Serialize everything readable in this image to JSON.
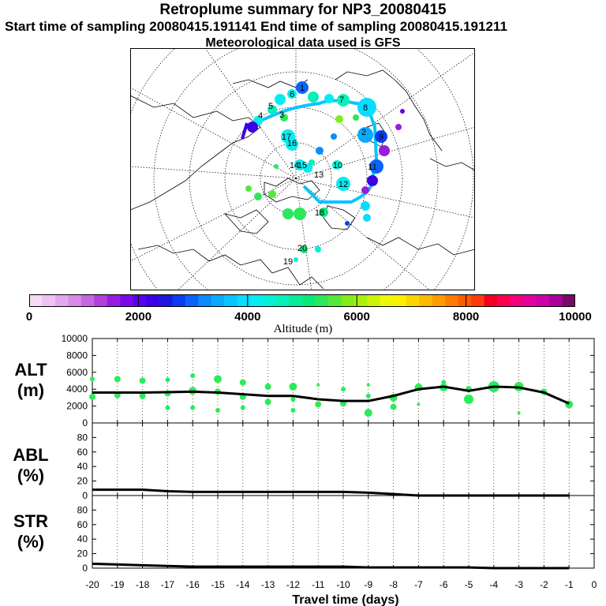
{
  "header": {
    "title": "Retroplume summary for NP3_20080415",
    "sampling": "Start time of sampling 20080415.191141     End time of sampling 20080415.191211",
    "meteo": "Meteorological data used is GFS"
  },
  "colorbar": {
    "tick_labels": [
      "0",
      "2000",
      "4000",
      "6000",
      "8000",
      "10000"
    ],
    "axis_label": "Altitude (m)",
    "colors": [
      "#f5d9f5",
      "#eec2f2",
      "#e2a8ee",
      "#d88ae8",
      "#c865e2",
      "#b43fdc",
      "#9a1be0",
      "#7a08e8",
      "#5a00f0",
      "#3c00e8",
      "#2018e0",
      "#0a3cf2",
      "#0a64fa",
      "#0a8cff",
      "#0aaaff",
      "#0ac4ff",
      "#0adcff",
      "#06ecf0",
      "#06f0d8",
      "#06f0b8",
      "#06ec98",
      "#0ae878",
      "#2ae85a",
      "#54e83a",
      "#80ec1c",
      "#a8f00a",
      "#ccf40a",
      "#ecf80a",
      "#fcf000",
      "#fcd400",
      "#fcb800",
      "#fc9c00",
      "#fc7c00",
      "#fc5c00",
      "#fc3c10",
      "#f4001c",
      "#fc0050",
      "#f4007c",
      "#e4009c",
      "#cc00ac",
      "#a8009c",
      "#7a0868"
    ]
  },
  "panels": {
    "alt": {
      "label_line1": "ALT",
      "label_line2": "(m)",
      "yticks": [
        "0",
        "2000",
        "4000",
        "6000",
        "8000",
        "10000"
      ]
    },
    "abl": {
      "label_line1": "ABL",
      "label_line2": "(%)",
      "yticks": [
        "0",
        "20",
        "40",
        "60",
        "80"
      ]
    },
    "str": {
      "label_line1": "STR",
      "label_line2": "(%)",
      "yticks": [
        "0",
        "20",
        "40",
        "60",
        "80"
      ]
    },
    "xticks": [
      "-20",
      "-19",
      "-18",
      "-17",
      "-16",
      "-15",
      "-14",
      "-13",
      "-12",
      "-11",
      "-10",
      "-9",
      "-8",
      "-7",
      "-6",
      "-5",
      "-4",
      "-3",
      "-2",
      "-1",
      "0"
    ],
    "xlabel": "Travel time (days)"
  },
  "map": {
    "day_labels": [
      "1",
      "2",
      "3",
      "4",
      "5",
      "6",
      "7",
      "8",
      "9",
      "10",
      "11",
      "12",
      "13",
      "14",
      "15",
      "16",
      "17",
      "18",
      "19",
      "20"
    ]
  },
  "chart_data": {
    "type": "line",
    "title": "Retroplume summary for NP3_20080415",
    "xlabel": "Travel time (days)",
    "x": [
      -20,
      -19,
      -18,
      -17,
      -16,
      -15,
      -14,
      -13,
      -12,
      -11,
      -10,
      -9,
      -8,
      -7,
      -6,
      -5,
      -4,
      -3,
      -2,
      -1
    ],
    "xlim": [
      -20,
      0
    ],
    "series": [
      {
        "name": "ALT (m)",
        "ylim": [
          0,
          10000
        ],
        "values": [
          3600,
          3600,
          3600,
          3650,
          3700,
          3600,
          3400,
          3200,
          3200,
          2800,
          2600,
          2600,
          3200,
          4000,
          4300,
          3800,
          4300,
          4200,
          3600,
          2300
        ]
      },
      {
        "name": "ABL (%)",
        "ylim": [
          0,
          100
        ],
        "values": [
          8,
          8,
          8,
          6,
          5,
          5,
          5,
          5,
          5,
          5,
          5,
          4,
          2,
          0,
          0,
          0,
          0,
          0,
          0,
          0
        ]
      },
      {
        "name": "STR (%)",
        "ylim": [
          0,
          100
        ],
        "values": [
          6,
          5,
          4,
          3,
          2,
          2,
          2,
          2,
          2,
          2,
          2,
          1,
          1,
          1,
          1,
          1,
          0,
          0,
          0,
          0
        ]
      }
    ],
    "cluster_points": [
      {
        "x": -20,
        "alt": 5200,
        "s": 2
      },
      {
        "x": -20,
        "alt": 3100,
        "s": 3
      },
      {
        "x": -19,
        "alt": 5200,
        "s": 3
      },
      {
        "x": -19,
        "alt": 3300,
        "s": 3
      },
      {
        "x": -18,
        "alt": 5000,
        "s": 3
      },
      {
        "x": -18,
        "alt": 3200,
        "s": 3
      },
      {
        "x": -17,
        "alt": 5100,
        "s": 2
      },
      {
        "x": -17,
        "alt": 3500,
        "s": 3
      },
      {
        "x": -17,
        "alt": 1800,
        "s": 2
      },
      {
        "x": -16,
        "alt": 5600,
        "s": 2
      },
      {
        "x": -16,
        "alt": 3800,
        "s": 4
      },
      {
        "x": -16,
        "alt": 1800,
        "s": 2
      },
      {
        "x": -15,
        "alt": 5200,
        "s": 4
      },
      {
        "x": -15,
        "alt": 3700,
        "s": 3
      },
      {
        "x": -15,
        "alt": 1500,
        "s": 2
      },
      {
        "x": -14,
        "alt": 4800,
        "s": 3
      },
      {
        "x": -14,
        "alt": 3100,
        "s": 3
      },
      {
        "x": -14,
        "alt": 1800,
        "s": 2
      },
      {
        "x": -13,
        "alt": 4300,
        "s": 3
      },
      {
        "x": -13,
        "alt": 2500,
        "s": 3
      },
      {
        "x": -12,
        "alt": 4300,
        "s": 4
      },
      {
        "x": -12,
        "alt": 2800,
        "s": 2
      },
      {
        "x": -12,
        "alt": 1500,
        "s": 2
      },
      {
        "x": -11,
        "alt": 4500,
        "s": 1
      },
      {
        "x": -11,
        "alt": 2200,
        "s": 3
      },
      {
        "x": -10,
        "alt": 4000,
        "s": 2
      },
      {
        "x": -10,
        "alt": 2300,
        "s": 3
      },
      {
        "x": -9,
        "alt": 4500,
        "s": 1
      },
      {
        "x": -9,
        "alt": 3200,
        "s": 2
      },
      {
        "x": -9,
        "alt": 1200,
        "s": 4
      },
      {
        "x": -8,
        "alt": 3000,
        "s": 4
      },
      {
        "x": -8,
        "alt": 1900,
        "s": 3
      },
      {
        "x": -7,
        "alt": 4200,
        "s": 4
      },
      {
        "x": -7,
        "alt": 2200,
        "s": 1
      },
      {
        "x": -6,
        "alt": 4800,
        "s": 2
      },
      {
        "x": -6,
        "alt": 4200,
        "s": 4
      },
      {
        "x": -5,
        "alt": 4000,
        "s": 3
      },
      {
        "x": -5,
        "alt": 2800,
        "s": 5
      },
      {
        "x": -4,
        "alt": 4300,
        "s": 6
      },
      {
        "x": -3,
        "alt": 4300,
        "s": 5
      },
      {
        "x": -3,
        "alt": 1200,
        "s": 1
      },
      {
        "x": -2,
        "alt": 3700,
        "s": 3
      },
      {
        "x": -1,
        "alt": 2200,
        "s": 4
      }
    ]
  }
}
